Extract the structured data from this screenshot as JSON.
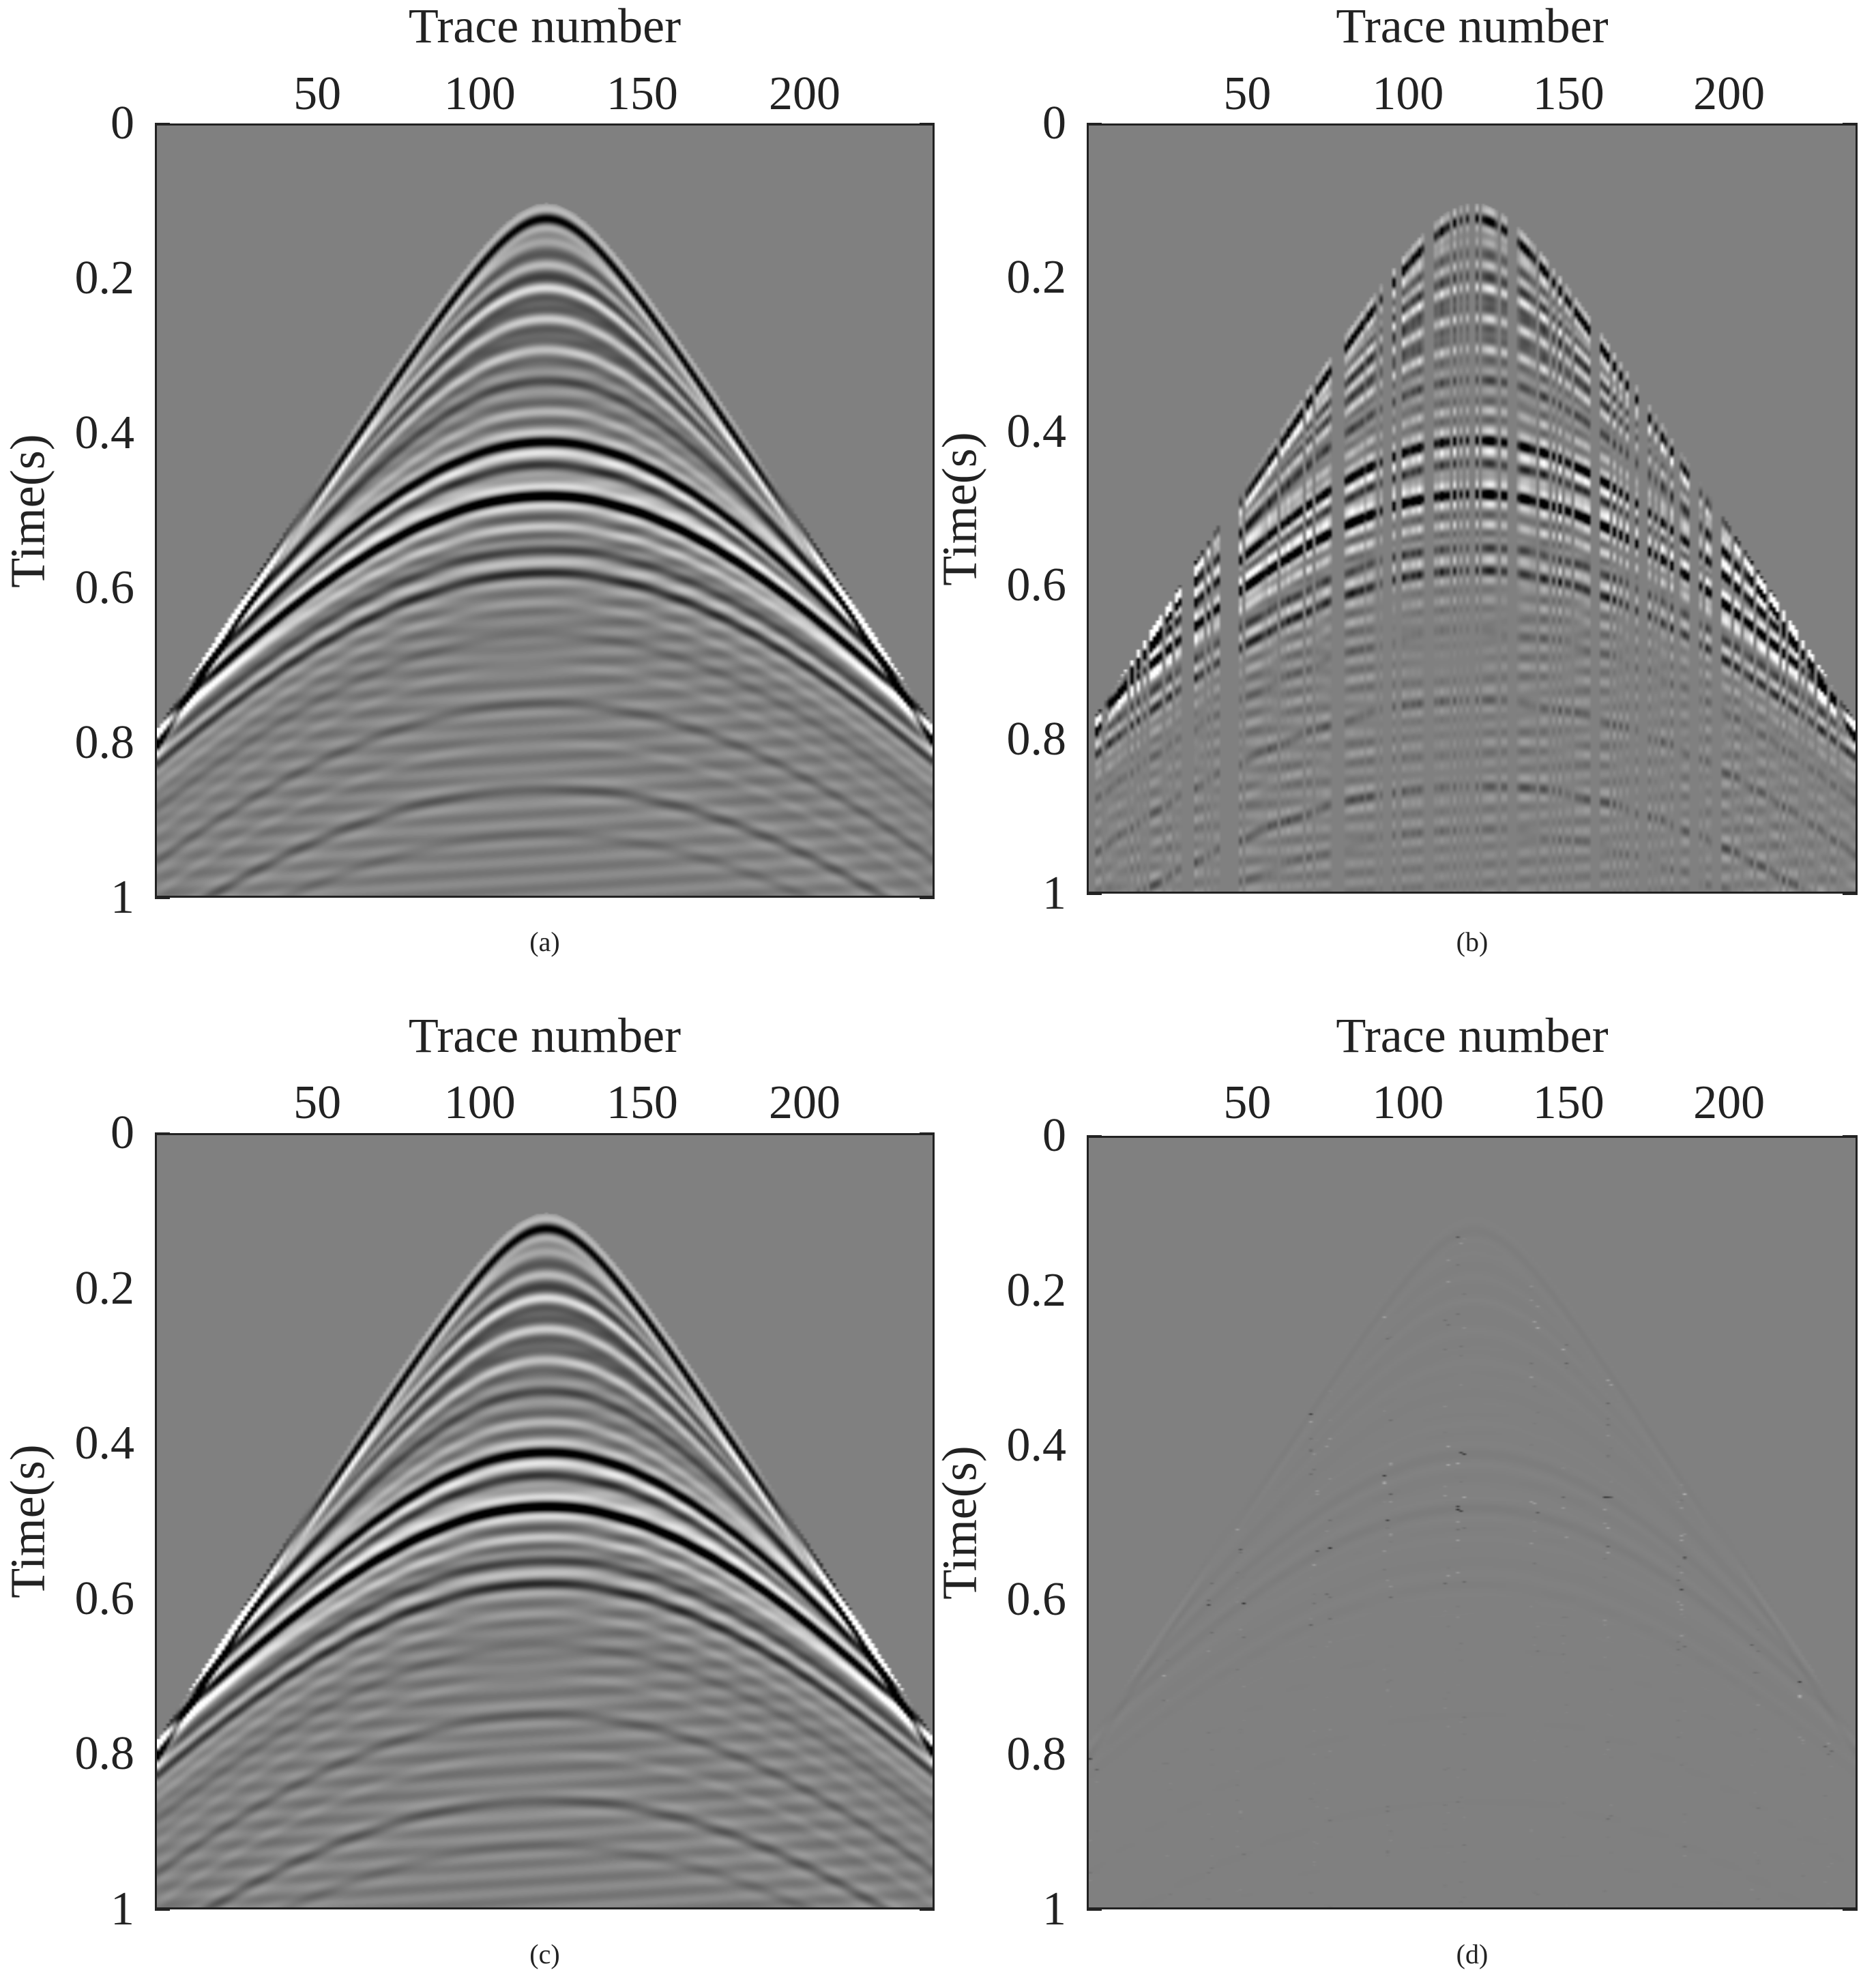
{
  "chart_data": [
    {
      "id": "a",
      "type": "heatmap",
      "caption": "(a)",
      "title": "",
      "xlabel": "Trace number",
      "ylabel": "Time(s)",
      "xlim": [
        0,
        240
      ],
      "ylim": [
        0,
        1
      ],
      "xticks": [
        "50",
        "100",
        "150",
        "200"
      ],
      "yticks": [
        "0",
        "0.2",
        "0.4",
        "0.6",
        "0.8",
        "1"
      ],
      "description_kind": "full",
      "apex_trace": 120,
      "event_apex_times": [
        0.12,
        0.15,
        0.18,
        0.21,
        0.25,
        0.29,
        0.33,
        0.37,
        0.41,
        0.44,
        0.48,
        0.52,
        0.55,
        0.58,
        0.62,
        0.66,
        0.7,
        0.75,
        0.8,
        0.86,
        0.92
      ]
    },
    {
      "id": "b",
      "type": "heatmap",
      "caption": "(b)",
      "title": "",
      "xlabel": "Trace number",
      "ylabel": "Time(s)",
      "xlim": [
        0,
        240
      ],
      "ylim": [
        0,
        1
      ],
      "xticks": [
        "50",
        "100",
        "150",
        "200"
      ],
      "yticks": [
        "0",
        "0.2",
        "0.4",
        "0.6",
        "0.8",
        "1"
      ],
      "description_kind": "decimated",
      "apex_trace": 120
    },
    {
      "id": "c",
      "type": "heatmap",
      "caption": "(c)",
      "title": "",
      "xlabel": "Trace number",
      "ylabel": "Time(s)",
      "xlim": [
        0,
        240
      ],
      "ylim": [
        0,
        1
      ],
      "xticks": [
        "50",
        "100",
        "150",
        "200"
      ],
      "yticks": [
        "0",
        "0.2",
        "0.4",
        "0.6",
        "0.8",
        "1"
      ],
      "description_kind": "reconstructed",
      "apex_trace": 120
    },
    {
      "id": "d",
      "type": "heatmap",
      "caption": "(d)",
      "title": "",
      "xlabel": "Trace number",
      "ylabel": "Time(s)",
      "xlim": [
        0,
        240
      ],
      "ylim": [
        0,
        1
      ],
      "xticks": [
        "50",
        "100",
        "150",
        "200"
      ],
      "yticks": [
        "0",
        "0.2",
        "0.4",
        "0.6",
        "0.8",
        "1"
      ],
      "description_kind": "residual",
      "apex_trace": 120
    }
  ],
  "colors": {
    "background": "#808080",
    "axis": "#222222"
  }
}
